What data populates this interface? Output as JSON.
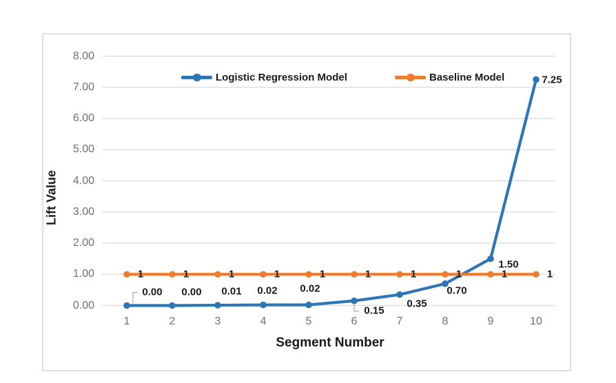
{
  "chart_data": {
    "type": "line",
    "title": "",
    "xlabel": "Segment Number",
    "ylabel": "Lift Value",
    "categories": [
      "1",
      "2",
      "3",
      "4",
      "5",
      "6",
      "7",
      "8",
      "9",
      "10"
    ],
    "series": [
      {
        "name": "Logistic Regression Model",
        "color": "#2E75B6",
        "values": [
          0.0,
          0.0,
          0.01,
          0.02,
          0.02,
          0.15,
          0.35,
          0.7,
          1.5,
          7.25
        ],
        "data_labels": [
          "0.00",
          "0.00",
          "0.01",
          "0.02",
          "0.02",
          "0.15",
          "0.35",
          "0.70",
          "1.50",
          "7.25"
        ]
      },
      {
        "name": "Baseline Model",
        "color": "#ED7D31",
        "values": [
          1,
          1,
          1,
          1,
          1,
          1,
          1,
          1,
          1,
          1
        ],
        "data_labels": [
          "1",
          "1",
          "1",
          "1",
          "1",
          "1",
          "1",
          "1",
          "1",
          "1"
        ]
      }
    ],
    "ylim": [
      0,
      8
    ],
    "ytick_step": 1,
    "ytick_labels": [
      "0.00",
      "1.00",
      "2.00",
      "3.00",
      "4.00",
      "5.00",
      "6.00",
      "7.00",
      "8.00"
    ],
    "grid": true,
    "legend_position": "top-center",
    "callout_points": [
      1,
      6
    ]
  },
  "colors": {
    "background": "#FFFFFF",
    "chart_border": "#D3D3D3",
    "gridline": "#DBDBDB",
    "tick_text": "#6F6F6F",
    "label_text": "#1A1A1A",
    "leader_line": "#A6A6A6",
    "series_blue": "#2E75B6",
    "series_orange": "#ED7D31"
  }
}
